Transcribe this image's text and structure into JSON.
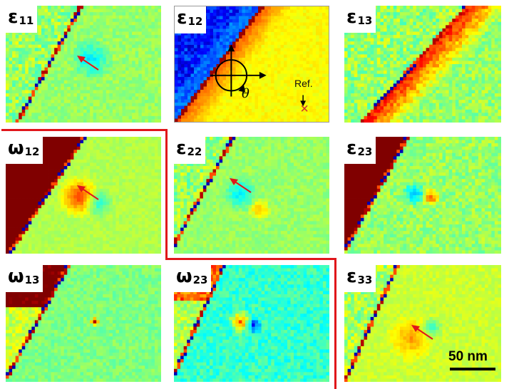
{
  "figure": {
    "panels": [
      {
        "id": "e11",
        "symbol": "ε",
        "subscript": "11",
        "type": "eps",
        "arrow": true
      },
      {
        "id": "e12",
        "symbol": "ε",
        "subscript": "12",
        "type": "e12",
        "arrow": false
      },
      {
        "id": "e13",
        "symbol": "ε",
        "subscript": "13",
        "type": "e13",
        "arrow": false
      },
      {
        "id": "w12",
        "symbol": "ω",
        "subscript": "12",
        "type": "w12",
        "arrow": true
      },
      {
        "id": "e22",
        "symbol": "ε",
        "subscript": "22",
        "type": "e22",
        "arrow": true
      },
      {
        "id": "e23",
        "symbol": "ε",
        "subscript": "23",
        "type": "e23",
        "arrow": false
      },
      {
        "id": "w13",
        "symbol": "ω",
        "subscript": "13",
        "type": "w13",
        "arrow": false
      },
      {
        "id": "w23",
        "symbol": "ω",
        "subscript": "23",
        "type": "w23",
        "arrow": false
      },
      {
        "id": "e33",
        "symbol": "ε",
        "subscript": "33",
        "type": "e33",
        "arrow": true
      }
    ],
    "reference_label": "Ref.",
    "angle_symbol": "θ",
    "scale_bar_label": "50 nm",
    "colors": {
      "background_field": "#b8e67a",
      "arrow": "#e0161b",
      "divider": "#e0161b"
    }
  }
}
